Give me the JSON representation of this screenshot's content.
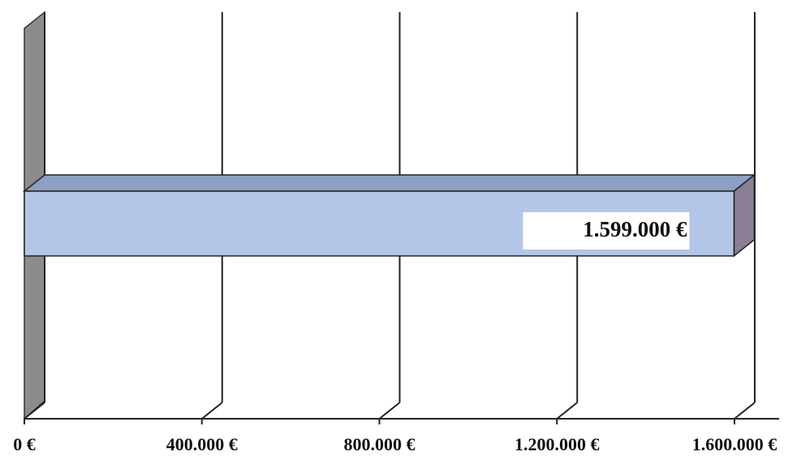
{
  "chart_data": {
    "type": "bar",
    "orientation": "horizontal",
    "categories": [
      null
    ],
    "values": [
      1599000
    ],
    "value_labels": [
      "1.599.000 €"
    ],
    "color": "#b4c6e7",
    "xlim": [
      0,
      1600000
    ],
    "xticks": [
      {
        "value": 0,
        "label": "0 €"
      },
      {
        "value": 400000,
        "label": "400.000 €"
      },
      {
        "value": 800000,
        "label": "800.000 €"
      },
      {
        "value": 1200000,
        "label": "1.200.000 €"
      },
      {
        "value": 1600000,
        "label": "1.600.000 €"
      }
    ],
    "grid": true
  }
}
